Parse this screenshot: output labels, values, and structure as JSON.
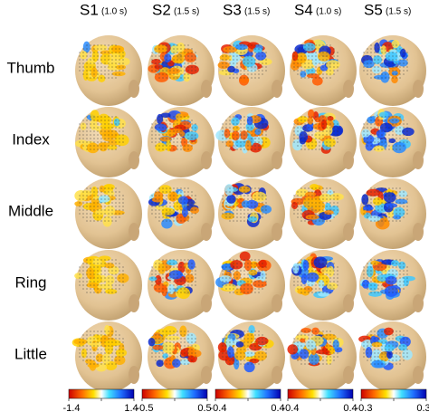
{
  "columns": [
    {
      "subject": "S1",
      "duration": "(1.0 s)"
    },
    {
      "subject": "S2",
      "duration": "(1.5 s)"
    },
    {
      "subject": "S3",
      "duration": "(1.5 s)"
    },
    {
      "subject": "S4",
      "duration": "(1.0 s)"
    },
    {
      "subject": "S5",
      "duration": "(1.5 s)"
    }
  ],
  "rows": [
    "Thumb",
    "Index",
    "Middle",
    "Ring",
    "Little"
  ],
  "colorbars": [
    {
      "min": "-1.4",
      "max": "1.4"
    },
    {
      "min": "-0.5",
      "max": "0.5"
    },
    {
      "min": "-0.4",
      "max": "0.4"
    },
    {
      "min": "-0.4",
      "max": "0.4"
    },
    {
      "min": "-0.3",
      "max": "0.3"
    }
  ]
}
